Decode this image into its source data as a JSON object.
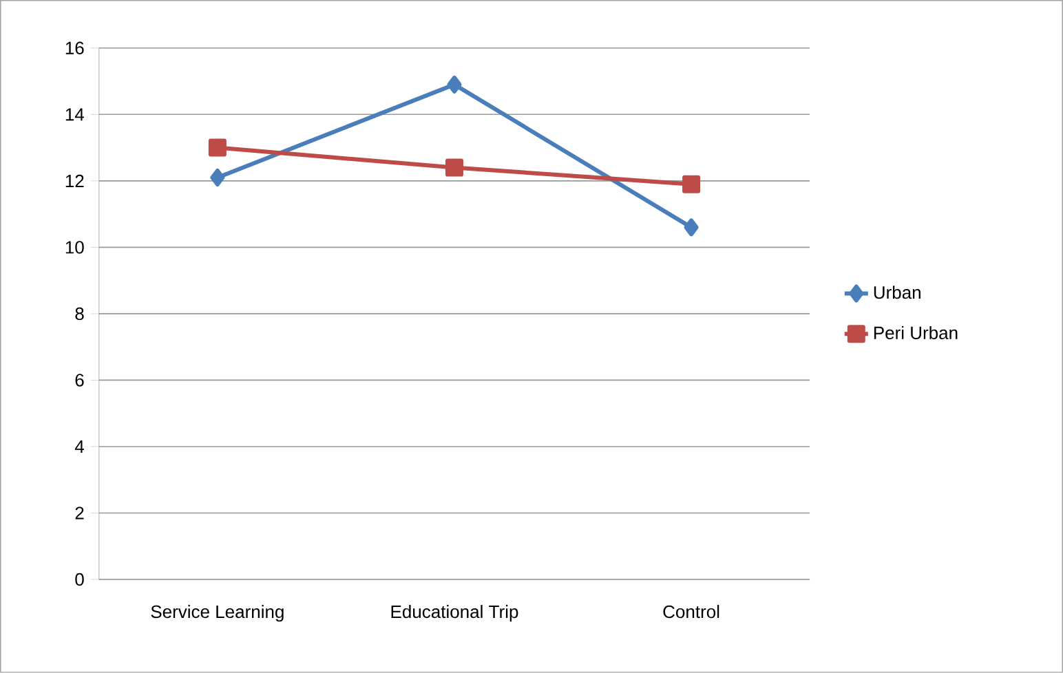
{
  "chart_data": {
    "type": "line",
    "categories": [
      "Service Learning",
      "Educational Trip",
      "Control"
    ],
    "series": [
      {
        "name": "Urban",
        "color": "#4a7ebb",
        "marker": "diamond",
        "values": [
          12.1,
          14.9,
          10.6
        ]
      },
      {
        "name": "Peri Urban",
        "color": "#be4b48",
        "marker": "square",
        "values": [
          13.0,
          12.4,
          11.9
        ]
      }
    ],
    "ylim": [
      0,
      16
    ],
    "yticks": [
      0,
      2,
      4,
      6,
      8,
      10,
      12,
      14,
      16
    ],
    "grid": "y",
    "legend": "right"
  }
}
